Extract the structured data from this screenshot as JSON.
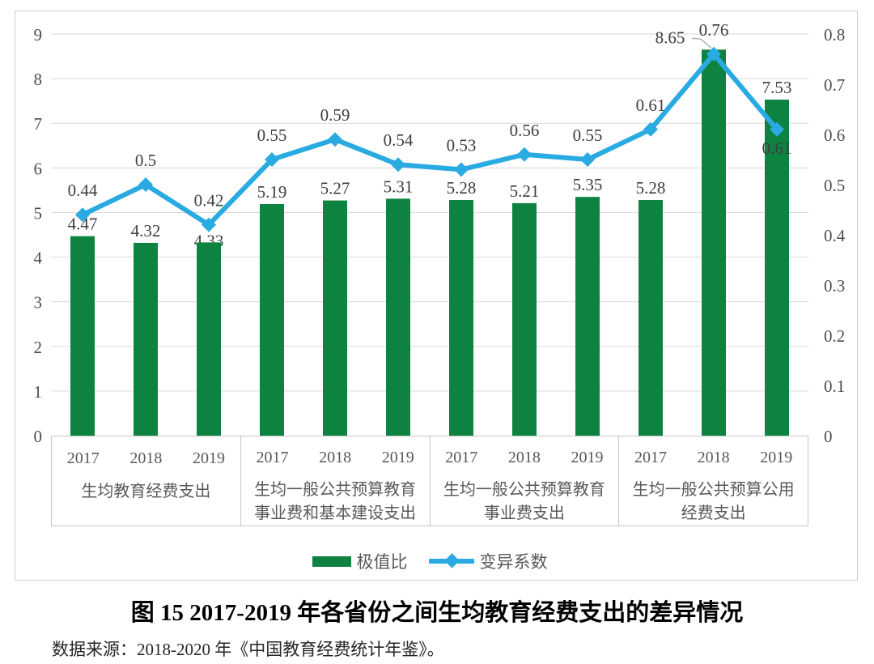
{
  "chart_data": {
    "type": "combo bar+line, dual axis",
    "title": "图 15  2017-2019 年各省份之间生均教育经费支出的差异情况",
    "source": "数据来源：2018-2020 年《中国教育经费统计年鉴》。",
    "groups": [
      {
        "label_lines": [
          "生均教育经费支出"
        ],
        "years": [
          "2017",
          "2018",
          "2019"
        ]
      },
      {
        "label_lines": [
          "生均一般公共预算教育",
          "事业费和基本建设支出"
        ],
        "years": [
          "2017",
          "2018",
          "2019"
        ]
      },
      {
        "label_lines": [
          "生均一般公共预算教育",
          "事业费支出"
        ],
        "years": [
          "2017",
          "2018",
          "2019"
        ]
      },
      {
        "label_lines": [
          "生均一般公共预算公用",
          "经费支出"
        ],
        "years": [
          "2017",
          "2018",
          "2019"
        ]
      }
    ],
    "series": [
      {
        "name": "极值比",
        "type": "bar",
        "axis": "left",
        "color": "#0E8341",
        "values": [
          4.47,
          4.32,
          4.33,
          5.19,
          5.27,
          5.31,
          5.28,
          5.21,
          5.35,
          5.28,
          8.65,
          7.53
        ],
        "labels": [
          "4.47",
          "4.32",
          "4.33",
          "5.19",
          "5.27",
          "5.31",
          "5.28",
          "5.21",
          "5.35",
          "5.28",
          "8.65",
          "7.53"
        ]
      },
      {
        "name": "变异系数",
        "type": "line",
        "axis": "right",
        "color": "#29ABE2",
        "marker": "diamond",
        "values": [
          0.44,
          0.5,
          0.42,
          0.55,
          0.59,
          0.54,
          0.53,
          0.56,
          0.55,
          0.61,
          0.76,
          0.61
        ],
        "labels": [
          "0.44",
          "0.5",
          "0.42",
          "0.55",
          "0.59",
          "0.54",
          "0.53",
          "0.56",
          "0.55",
          "0.61",
          "0.76",
          "0.61"
        ]
      }
    ],
    "left_axis": {
      "min": 0,
      "max": 9,
      "step": 1,
      "ticks": [
        "0",
        "1",
        "2",
        "3",
        "4",
        "5",
        "6",
        "7",
        "8",
        "9"
      ]
    },
    "right_axis": {
      "min": 0,
      "max": 0.8,
      "step": 0.1,
      "ticks": [
        "0",
        "0.1",
        "0.2",
        "0.3",
        "0.4",
        "0.5",
        "0.6",
        "0.7",
        "0.8"
      ]
    },
    "grid": "horizontal major gridlines",
    "legend_position": "bottom",
    "grid_color": "#D9D9D9",
    "frame_color": "#CFCFCF",
    "axis_text_color": "#4D4D4D",
    "label_color": "#3D3D3D",
    "leader_color": "#AFAFAF",
    "label_overrides": {
      "bar": {
        "2": {
          "dy": 13
        },
        "10": {
          "dx": -54,
          "leader": true
        }
      },
      "line": {
        "11": {
          "dy": 53
        }
      }
    }
  }
}
